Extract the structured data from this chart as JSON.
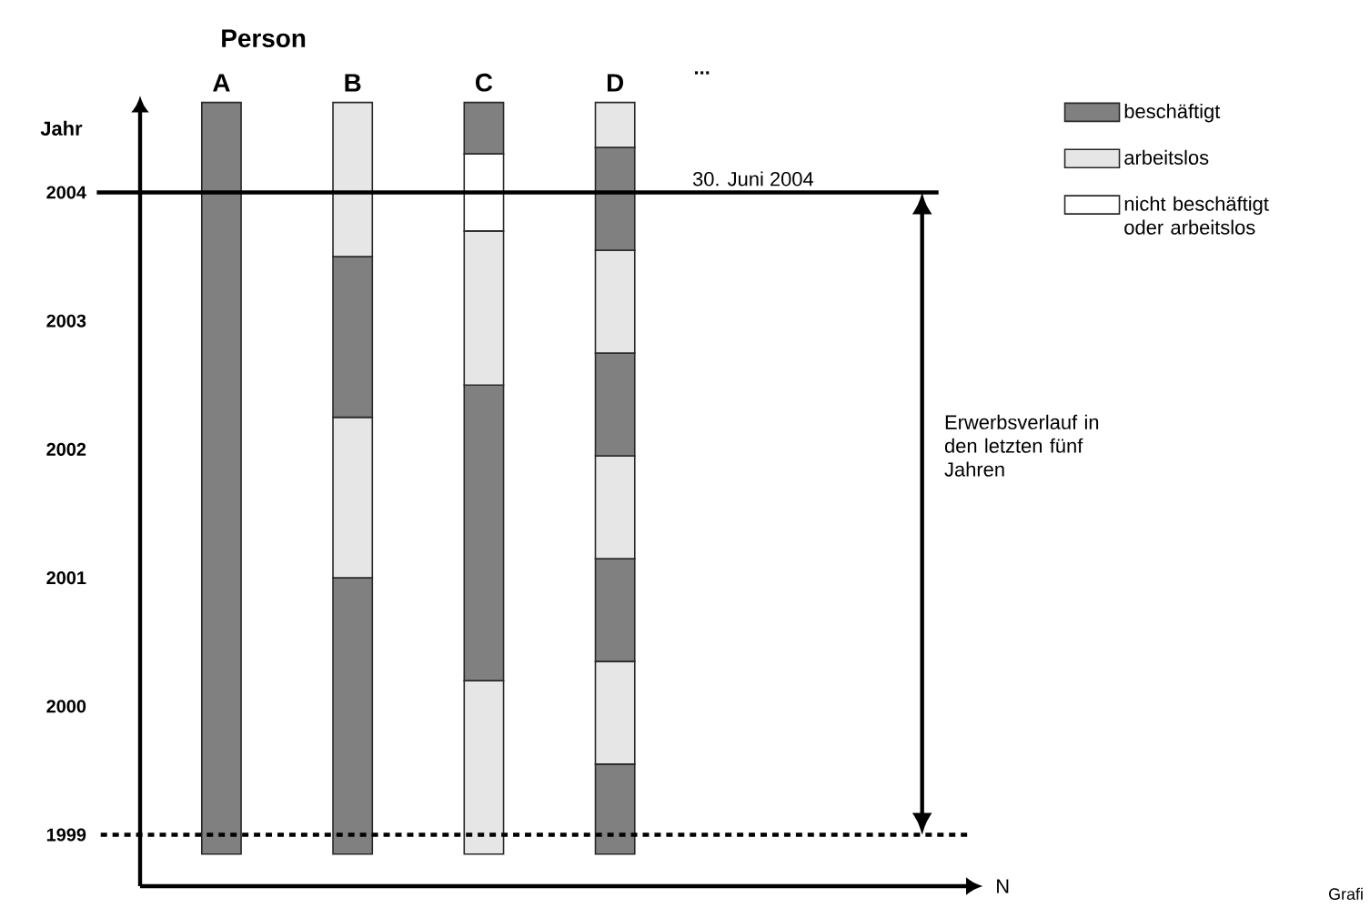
{
  "chart_data": {
    "type": "bar",
    "ylabel": "Jahr",
    "categories": [
      "A",
      "B",
      "C",
      "D"
    ],
    "series": [
      {
        "name": "beschäftigt",
        "color": "#808080",
        "base": [
          1998.85,
          1998.85,
          null,
          1998.85
        ],
        "values": [
          5.85,
          2.15,
          null,
          0.7
        ]
      },
      {
        "name": "arbeitslos",
        "color": "#e6e6e6",
        "base": [
          null,
          2001.0,
          1998.85,
          1999.55
        ],
        "values": [
          null,
          1.25,
          1.35,
          0.8
        ]
      },
      {
        "color": "#808080",
        "base": [
          null,
          2002.25,
          2000.2,
          2000.35
        ],
        "values": [
          null,
          1.25,
          2.3,
          0.8
        ]
      },
      {
        "color": "#e6e6e6",
        "base": [
          null,
          2003.5,
          2002.5,
          2001.15
        ],
        "values": [
          null,
          1.2,
          1.2,
          0.8
        ]
      },
      {
        "name": "nicht beschäftigt oder arbeitslos",
        "color": "#ffffff",
        "base": [
          null,
          null,
          2003.7,
          null
        ],
        "values": [
          null,
          null,
          0.6,
          null
        ]
      },
      {
        "color": "#808080",
        "base": [
          null,
          null,
          2004.3,
          2001.95
        ],
        "values": [
          null,
          null,
          0.4,
          0.8
        ]
      },
      {
        "color": "#e6e6e6",
        "base": [
          null,
          null,
          null,
          2002.75
        ],
        "values": [
          null,
          null,
          null,
          0.8
        ]
      },
      {
        "color": "#808080",
        "base": [
          null,
          null,
          null,
          2003.55
        ],
        "values": [
          null,
          null,
          null,
          0.8
        ]
      },
      {
        "color": "#e6e6e6",
        "base": [
          null,
          null,
          null,
          2004.35
        ],
        "values": [
          null,
          null,
          null,
          0.35
        ]
      }
    ],
    "ylim": [
      1998.6,
      2004.75
    ],
    "yticks": [
      1999,
      2000,
      2001,
      2002,
      2003,
      2004
    ],
    "ref_lines": [
      {
        "axis": "y",
        "value": 2004,
        "label": "30. Juni 2004",
        "line_style": "solid"
      },
      {
        "axis": "y",
        "value": 1999,
        "line_style": "dotted"
      }
    ],
    "annotations": [
      "Person",
      "...",
      "Erwerbsverlauf in den letzten fünf Jahren",
      "Grafi",
      "N"
    ],
    "legend": "top right",
    "grid": false
  }
}
